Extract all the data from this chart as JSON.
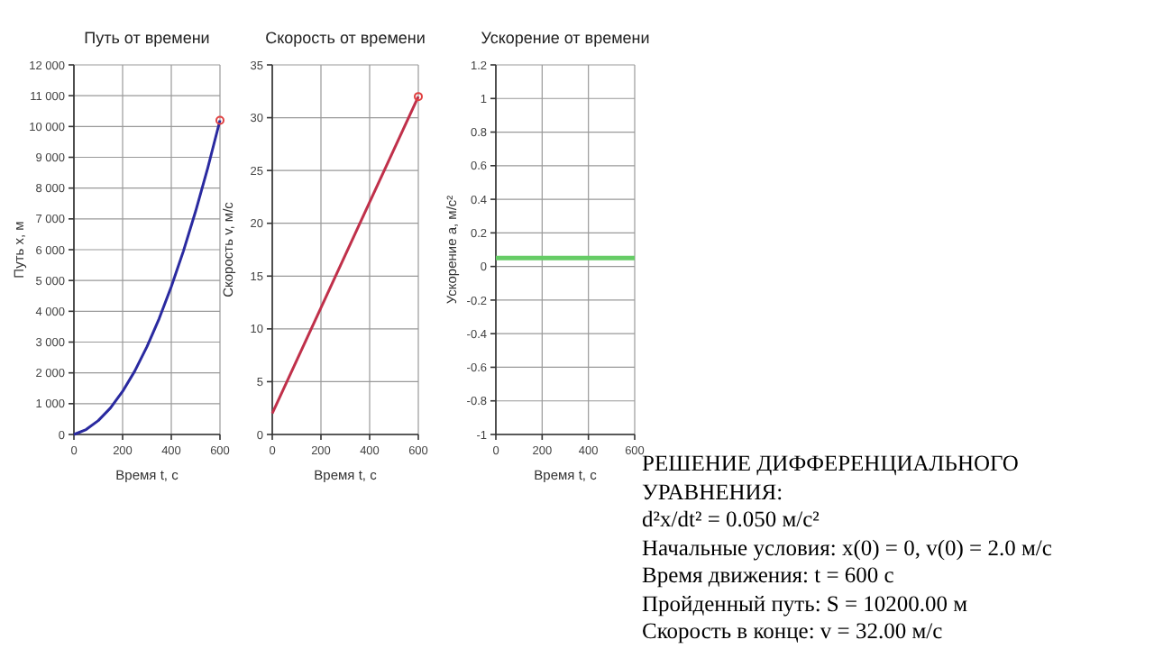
{
  "chart_data": [
    {
      "type": "line",
      "title": "Путь от времени",
      "xlabel": "Время t, с",
      "ylabel": "Путь x, м",
      "xlim": [
        0,
        600
      ],
      "xticks": [
        0,
        200,
        400,
        600
      ],
      "ylim": [
        0,
        12000
      ],
      "yticks": [
        0,
        {
          "value": 1000,
          "label": "1 000"
        },
        {
          "value": 2000,
          "label": "2 000"
        },
        {
          "value": 3000,
          "label": "3 000"
        },
        {
          "value": 4000,
          "label": "4 000"
        },
        {
          "value": 5000,
          "label": "5 000"
        },
        {
          "value": 6000,
          "label": "6 000"
        },
        {
          "value": 7000,
          "label": "7 000"
        },
        {
          "value": 8000,
          "label": "8 000"
        },
        {
          "value": 9000,
          "label": "9 000"
        },
        {
          "value": 10000,
          "label": "10 000"
        },
        {
          "value": 11000,
          "label": "11 000"
        },
        {
          "value": 12000,
          "label": "12 000"
        }
      ],
      "grid": true,
      "series": [
        {
          "color": "#2a2aa0",
          "x": [
            0,
            50,
            100,
            150,
            200,
            250,
            300,
            350,
            400,
            450,
            500,
            550,
            600
          ],
          "values": [
            0,
            160,
            450,
            860,
            1400,
            2060,
            2850,
            3760,
            4800,
            5960,
            7250,
            8660,
            10200
          ]
        },
        {
          "type": "scatter",
          "marker": "circle",
          "color": "#e04040",
          "x": [
            600
          ],
          "values": [
            10200
          ]
        }
      ]
    },
    {
      "type": "line",
      "title": "Скорость от времени",
      "xlabel": "Время t, с",
      "ylabel": "Скорость v, м/с",
      "xlim": [
        0,
        600
      ],
      "xticks": [
        0,
        200,
        400,
        600
      ],
      "ylim": [
        0,
        35
      ],
      "yticks": [
        0,
        5,
        10,
        15,
        20,
        25,
        30,
        35
      ],
      "grid": true,
      "series": [
        {
          "color": "#c0304a",
          "x": [
            0,
            600
          ],
          "values": [
            2,
            32
          ]
        },
        {
          "type": "scatter",
          "marker": "circle",
          "color": "#e04040",
          "x": [
            600
          ],
          "values": [
            32
          ]
        }
      ]
    },
    {
      "type": "line",
      "title": "Ускорение от времени",
      "xlabel": "Время t, с",
      "ylabel": "Ускорение a, м/с²",
      "xlim": [
        0,
        600
      ],
      "xticks": [
        0,
        200,
        400,
        600
      ],
      "ylim": [
        -1,
        1.2
      ],
      "yticks": [
        -1,
        -0.8,
        -0.6,
        -0.4,
        -0.2,
        0,
        0.2,
        0.4,
        0.6,
        0.8,
        1,
        1.2
      ],
      "grid": true,
      "series": [
        {
          "color": "#66cc66",
          "x": [
            0,
            600
          ],
          "values": [
            0.05,
            0.05
          ]
        }
      ]
    },
    {
      "type": "other",
      "title": "РЕШЕНИЕ ДИФФЕРЕНЦИАЛЬНОГО УРАВНЕНИЯ:",
      "annotations": [
        "d²x/dt² = 0.050 м/с²",
        "Начальные условия: x(0) = 0, v(0) = 2.0 м/с",
        "Время движения: t = 600 с",
        "Пройденный путь: S = 10200.00 м",
        "Скорость в конце: v = 32.00 м/с"
      ]
    }
  ]
}
